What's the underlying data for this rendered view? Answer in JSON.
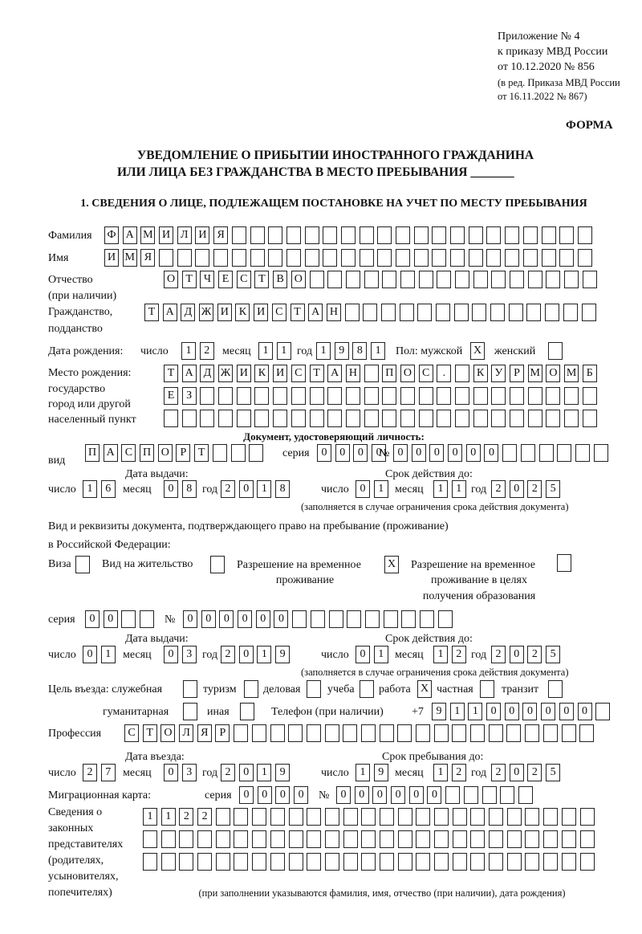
{
  "header": {
    "appendix": "Приложение № 4",
    "order": "к приказу МВД России",
    "order_date": "от 10.12.2020 № 856",
    "revision_1": "(в ред. Приказа МВД России",
    "revision_2": "от 16.11.2022 № 867)",
    "form_label": "ФОРМА",
    "title_1": "УВЕДОМЛЕНИЕ О ПРИБЫТИИ ИНОСТРАННОГО ГРАЖДАНИНА",
    "title_2": "ИЛИ ЛИЦА БЕЗ ГРАЖДАНСТВА В МЕСТО ПРЕБЫВАНИЯ",
    "title_blank": "_______"
  },
  "section1": {
    "heading": "1. СВЕДЕНИЯ О ЛИЦЕ, ПОДЛЕЖАЩЕМ ПОСТАНОВКЕ НА УЧЕТ ПО МЕСТУ ПРЕБЫВАНИЯ",
    "surname": {
      "label": "Фамилия",
      "value": "ФАМИЛИЯ",
      "cells": 27
    },
    "name": {
      "label": "Имя",
      "value": "ИМЯ",
      "cells": 27
    },
    "patronymic": {
      "label_1": "Отчество",
      "label_2": "(при наличии)",
      "value": "ОТЧЕСТВО",
      "cells": 24
    },
    "citizenship": {
      "label_1": "Гражданство,",
      "label_2": "подданство",
      "value": "ТАДЖИКИСТАН",
      "cells": 25
    },
    "birth_date": {
      "label": "Дата рождения:",
      "day_label": "число",
      "day": "12",
      "month_label": "месяц",
      "month": "11",
      "year_label": "год",
      "year": "1981"
    },
    "sex": {
      "label": "Пол: мужской",
      "male": "X",
      "female_label": "женский",
      "female": ""
    },
    "birth_place": {
      "label_1": "Место рождения:",
      "label_2": "государство",
      "label_3": "город или другой",
      "label_4": "населенный пункт",
      "rows": [
        {
          "value": "ТАДЖИКИСТАН ПОС. КУРМОМБ",
          "cells": 24
        },
        {
          "value": "ЕЗ",
          "cells": 24
        },
        {
          "value": "",
          "cells": 24
        }
      ]
    },
    "id_document": {
      "heading": "Документ, удостоверяющий личность:",
      "type_label": "вид",
      "type": {
        "value": "ПАСПОРТ",
        "cells": 10
      },
      "series_label": "серия",
      "series": {
        "value": "0000",
        "cells": 4
      },
      "number_label": "№",
      "number": {
        "value": "000000",
        "cells": 12
      },
      "issue_label": "Дата выдачи:",
      "valid_label": "Срок действия до:",
      "issue": {
        "day": "16",
        "month": "08",
        "year": "2018"
      },
      "valid": {
        "day": "01",
        "month": "11",
        "year": "2025"
      },
      "note": "(заполняется в случае ограничения срока действия документа)"
    },
    "stay_document": {
      "label_1": "Вид и реквизиты документа, подтверждающего право на пребывание (проживание)",
      "label_2": "в Российской Федерации:",
      "visa_label": "Виза",
      "visa": "",
      "residence_label": "Вид на жительство",
      "residence": "",
      "temp_label_1": "Разрешение на временное",
      "temp_label_2": "проживание",
      "temp": "X",
      "edu_label_1": "Разрешение на временное",
      "edu_label_2": "проживание в целях",
      "edu_label_3": "получения образования",
      "edu": "",
      "series_label": "серия",
      "series": {
        "value": "00",
        "cells": 4
      },
      "number_label": "№",
      "number": {
        "value": "000000",
        "cells": 15
      },
      "issue_label": "Дата выдачи:",
      "valid_label": "Срок действия до:",
      "issue": {
        "day": "01",
        "month": "03",
        "year": "2019"
      },
      "valid": {
        "day": "01",
        "month": "12",
        "year": "2025"
      },
      "note": "(заполняется в случае ограничения срока действия документа)"
    },
    "purpose": {
      "label": "Цель въезда: служебная",
      "official": "",
      "tourism_label": "туризм",
      "tourism": "",
      "business_label": "деловая",
      "business": "",
      "study_label": "учеба",
      "study": "",
      "work_label": "работа",
      "work": "X",
      "private_label": "частная",
      "private": "",
      "transit_label": "транзит",
      "transit": "",
      "humanitarian_label": "гуманитарная",
      "humanitarian": "",
      "other_label": "иная",
      "other": ""
    },
    "phone": {
      "label": "Телефон (при наличии)",
      "prefix": "+7",
      "value": "911000000",
      "cells": 10
    },
    "profession": {
      "label": "Профессия",
      "value": "СТОЛЯР",
      "cells": 26
    },
    "entry": {
      "entry_label": "Дата въезда:",
      "stay_label": "Срок пребывания до:",
      "entry_date": {
        "day": "27",
        "month": "03",
        "year": "2019"
      },
      "stay_until": {
        "day": "19",
        "month": "12",
        "year": "2025"
      }
    },
    "migration_card": {
      "label": "Миграционная карта:",
      "series_label": "серия",
      "series": {
        "value": "0000",
        "cells": 4
      },
      "number_label": "№",
      "number": {
        "value": "000000",
        "cells": 11
      }
    },
    "representatives": {
      "label_1": "Сведения о",
      "label_2": "законных",
      "label_3": "представителях",
      "label_4": "(родителях,",
      "label_5": "усыновителях,",
      "label_6": "попечителях)",
      "rows": [
        {
          "value": "1122",
          "cells": 25
        },
        {
          "value": "",
          "cells": 25
        },
        {
          "value": "",
          "cells": 25
        }
      ],
      "note": "(при заполнении указываются фамилия, имя, отчество (при наличии), дата рождения)"
    },
    "common": {
      "day_label": "число",
      "month_label": "месяц",
      "year_label": "год"
    }
  }
}
